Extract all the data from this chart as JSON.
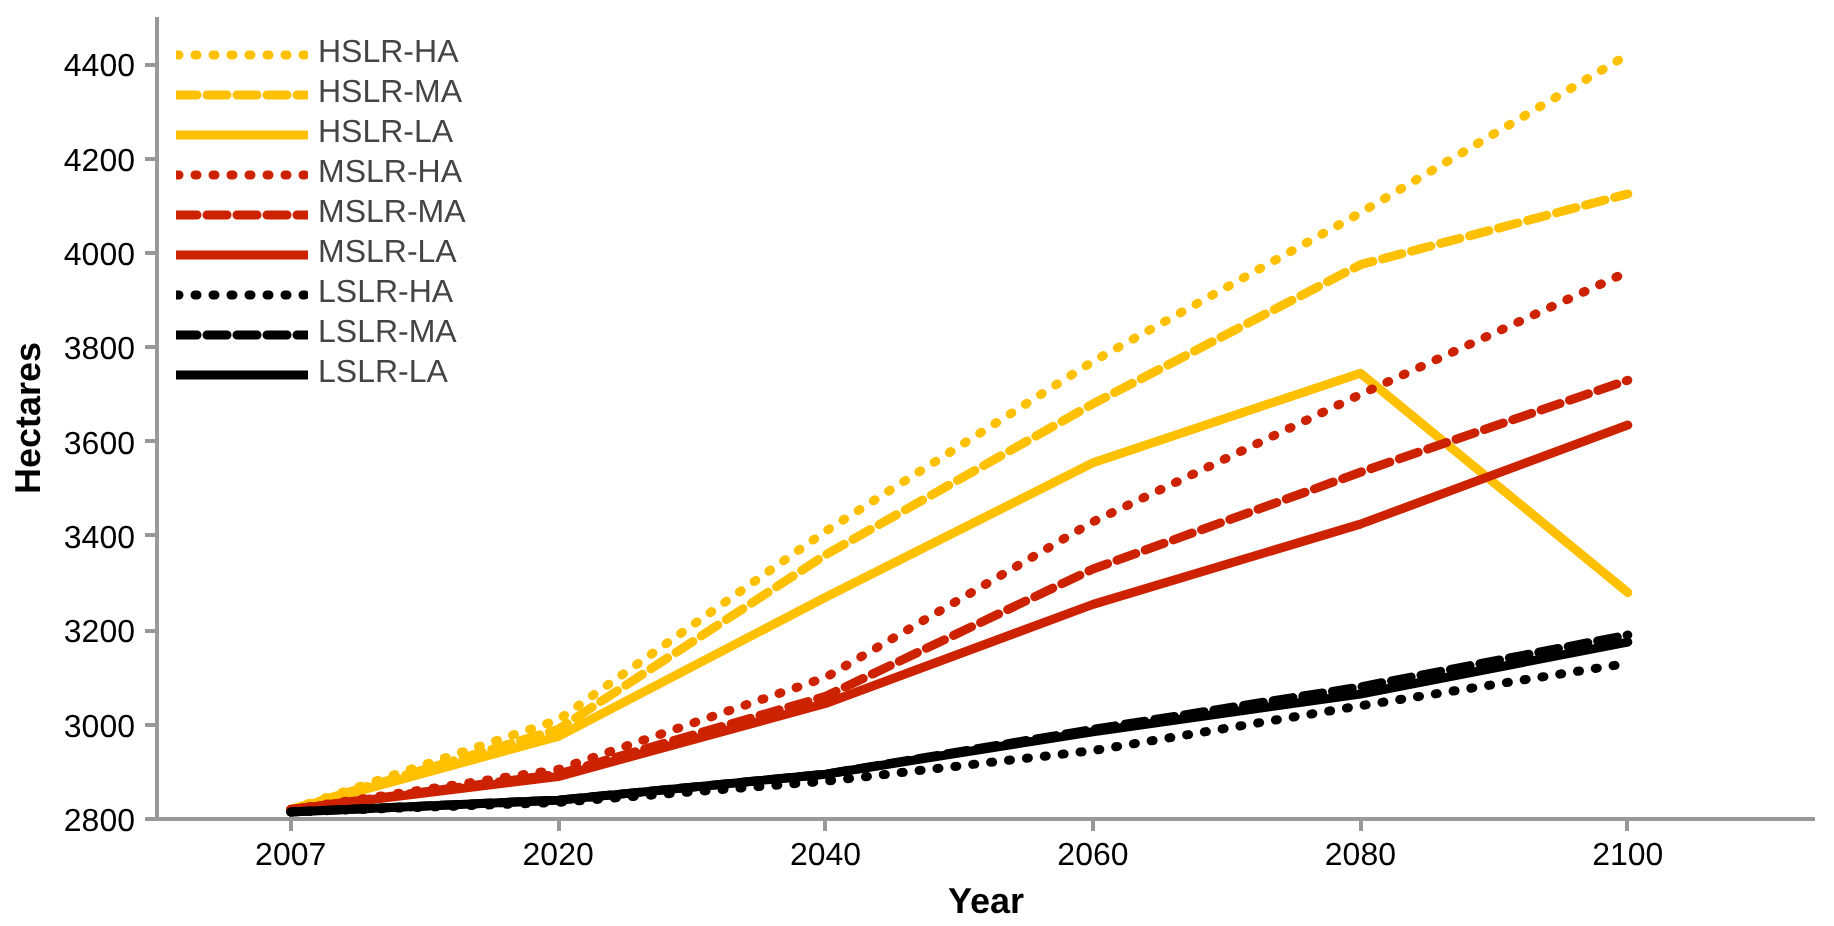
{
  "chart_data": {
    "type": "line",
    "xlabel": "Year",
    "ylabel": "Hectares",
    "categories": [
      "2007",
      "2020",
      "2040",
      "2060",
      "2080",
      "2100"
    ],
    "ylim": [
      2800,
      4500
    ],
    "yticks": [
      2800,
      3000,
      3200,
      3400,
      3600,
      3800,
      4000,
      4200,
      4400
    ],
    "grid": false,
    "legend": "top left",
    "marker": "none",
    "series": [
      {
        "name": "HSLR-HA",
        "color": "#ffc000",
        "line_style": "dotted",
        "values": [
          2820,
          3010,
          3410,
          3770,
          4085,
          4420
        ]
      },
      {
        "name": "HSLR-MA",
        "color": "#ffc000",
        "line_style": "dashed",
        "values": [
          2820,
          2990,
          3360,
          3680,
          3975,
          4125
        ]
      },
      {
        "name": "HSLR-LA",
        "color": "#ffc000",
        "line_style": "solid",
        "values": [
          2820,
          2975,
          3270,
          3555,
          3745,
          3280
        ]
      },
      {
        "name": "MSLR-HA",
        "color": "#cc2200",
        "line_style": "dotted",
        "values": [
          2820,
          2905,
          3100,
          3430,
          3700,
          3960
        ]
      },
      {
        "name": "MSLR-MA",
        "color": "#cc2200",
        "line_style": "dashed",
        "values": [
          2820,
          2895,
          3060,
          3330,
          3535,
          3730
        ]
      },
      {
        "name": "MSLR-LA",
        "color": "#cc2200",
        "line_style": "solid",
        "values": [
          2820,
          2890,
          3045,
          3255,
          3425,
          3635
        ]
      },
      {
        "name": "LSLR-HA",
        "color": "#000000",
        "line_style": "dotted",
        "values": [
          2815,
          2835,
          2880,
          2945,
          3040,
          3130
        ]
      },
      {
        "name": "LSLR-MA",
        "color": "#000000",
        "line_style": "dashed",
        "values": [
          2815,
          2840,
          2895,
          2990,
          3080,
          3190
        ]
      },
      {
        "name": "LSLR-LA",
        "color": "#000000",
        "line_style": "solid",
        "values": [
          2815,
          2840,
          2895,
          2985,
          3065,
          3175
        ]
      }
    ]
  }
}
